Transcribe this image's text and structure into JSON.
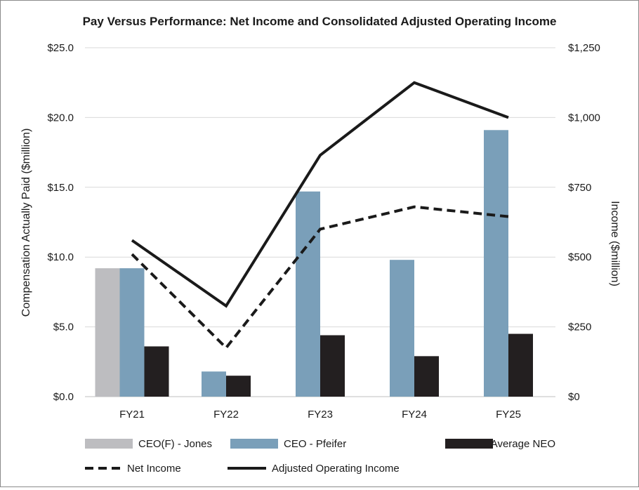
{
  "chart_data": {
    "type": "bar+line",
    "title": "Pay Versus Performance: Net Income and Consolidated Adjusted Operating Income",
    "categories": [
      "FY21",
      "FY22",
      "FY23",
      "FY24",
      "FY25"
    ],
    "left_axis": {
      "label": "Compensation Actually Paid ($million)",
      "ticks": [
        "$0.0",
        "$5.0",
        "$10.0",
        "$15.0",
        "$20.0",
        "$25.0"
      ],
      "tick_values": [
        0,
        5,
        10,
        15,
        20,
        25
      ],
      "range": [
        0,
        25
      ]
    },
    "right_axis": {
      "label": "Income  ($million)",
      "ticks": [
        "$0",
        "$250",
        "$500",
        "$750",
        "$1,000",
        "$1,250"
      ],
      "tick_values": [
        0,
        250,
        500,
        750,
        1000,
        1250
      ],
      "range": [
        0,
        1250
      ]
    },
    "bar_series": [
      {
        "name": "CEO(F) - Jones",
        "color": "#bdbdc0",
        "values": [
          9.2,
          null,
          null,
          null,
          null
        ]
      },
      {
        "name": "CEO - Pfeifer",
        "color": "#7a9fb9",
        "values": [
          9.2,
          1.8,
          14.7,
          9.8,
          19.1
        ]
      },
      {
        "name": "Average NEO",
        "color": "#231f20",
        "values": [
          3.6,
          1.5,
          4.4,
          2.9,
          4.5
        ]
      }
    ],
    "line_series": [
      {
        "name": "Net Income",
        "color": "#1a1a1a",
        "style": "dashed",
        "values": [
          510,
          175,
          600,
          680,
          645
        ]
      },
      {
        "name": "Adjusted Operating Income",
        "color": "#1a1a1a",
        "style": "solid",
        "values": [
          560,
          325,
          865,
          1125,
          1000
        ]
      }
    ],
    "grid": true,
    "legend_position": "bottom"
  }
}
